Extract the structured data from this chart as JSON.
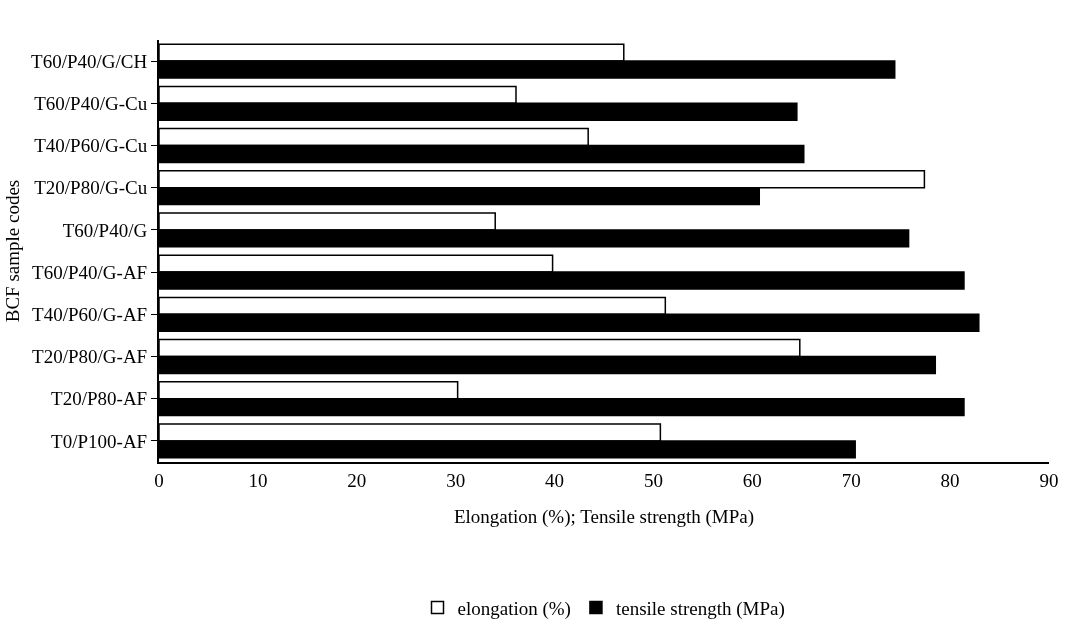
{
  "chart_data": {
    "type": "bar",
    "orientation": "horizontal",
    "xlabel": "Elongation (%); Tensile strength (MPa)",
    "ylabel": "BCF sample codes",
    "categories": [
      "T60/P40/G/CH",
      "T60/P40/G-Cu",
      "T40/P60/G-Cu",
      "T20/P80/G-Cu",
      "T60/P40/G",
      "T60/P40/G-AF",
      "T40/P60/G-AF",
      "T20/P80/G-AF",
      "T20/P80-AF",
      "T0/P100-AF"
    ],
    "series": [
      {
        "name": "elongation (%)",
        "color": "#ffffff",
        "values": [
          47.0,
          36.1,
          43.4,
          77.4,
          34.0,
          39.8,
          51.2,
          64.8,
          30.2,
          50.7
        ]
      },
      {
        "name": "tensile strength (MPa)",
        "color": "#000000",
        "values": [
          74.4,
          64.5,
          65.2,
          60.7,
          75.8,
          81.4,
          82.9,
          78.5,
          81.4,
          70.4
        ]
      }
    ],
    "xlim": [
      0,
      90
    ],
    "xticks": [
      0,
      10,
      20,
      30,
      40,
      50,
      60,
      70,
      80,
      90
    ],
    "grid": false,
    "legend": "bottom"
  }
}
